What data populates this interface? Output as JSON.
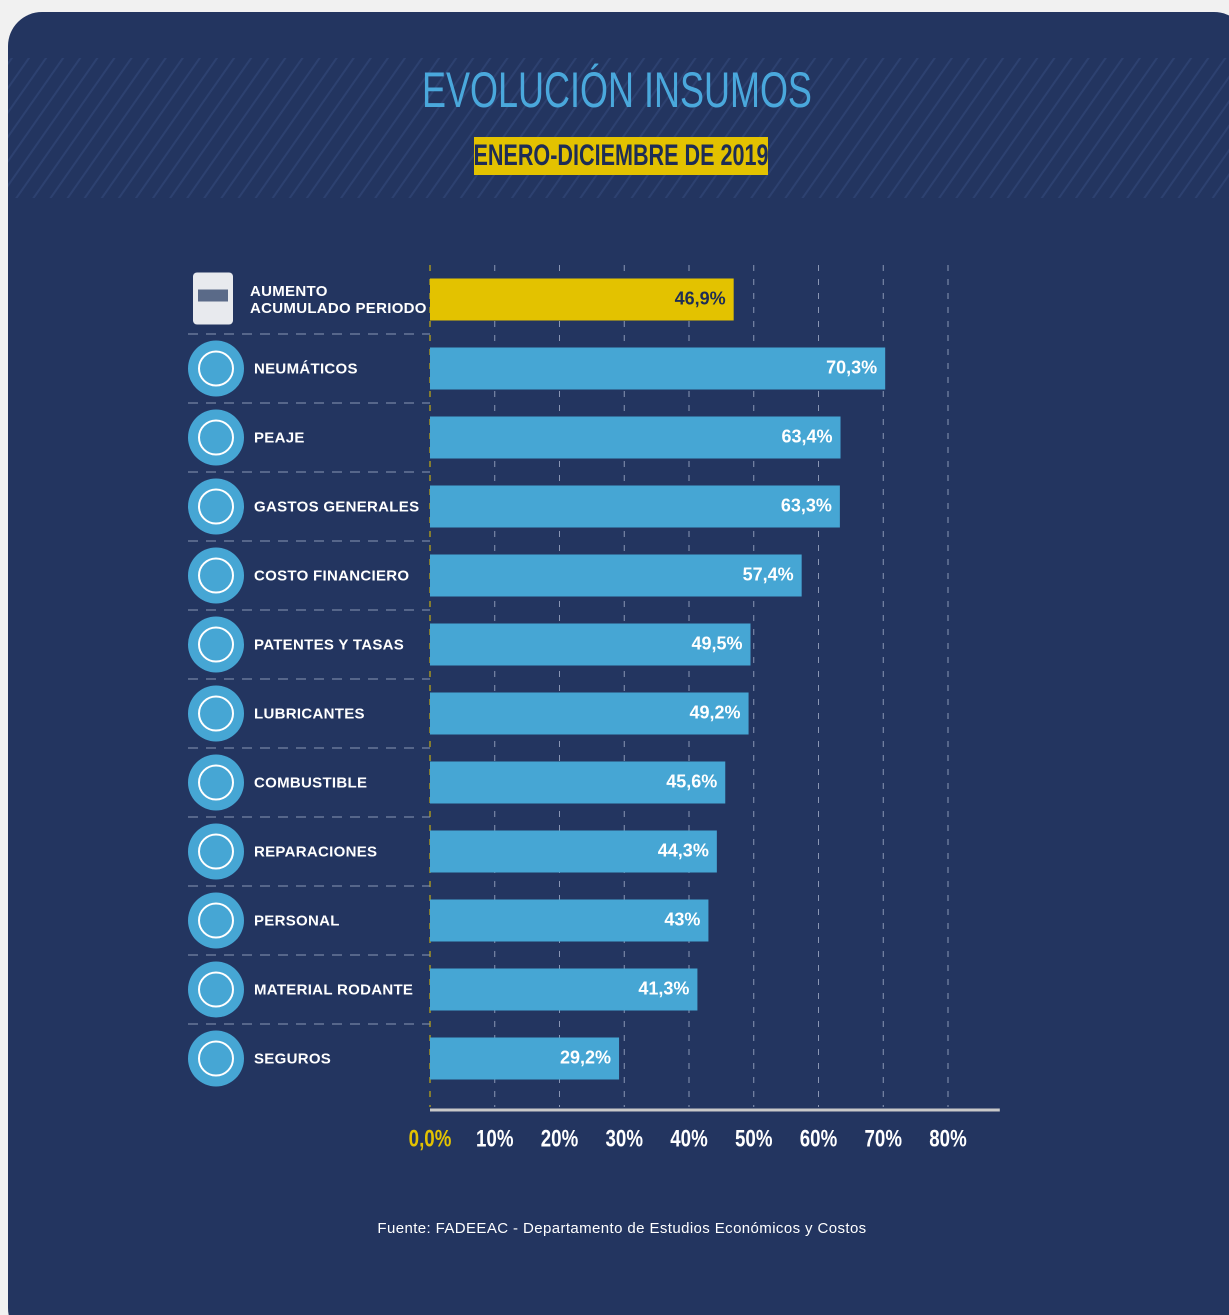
{
  "chart_data": {
    "type": "bar",
    "orientation": "horizontal",
    "title": "EVOLUCIÓN INSUMOS",
    "subtitle": "ENERO-DICIEMBRE DE 2019",
    "categories": [
      "AUMENTO\nACUMULADO PERIODO",
      "NEUMÁTICOS",
      "PEAJE",
      "GASTOS GENERALES",
      "COSTO FINANCIERO",
      "PATENTES Y TASAS",
      "LUBRICANTES",
      "COMBUSTIBLE",
      "REPARACIONES",
      "PERSONAL",
      "MATERIAL RODANTE",
      "SEGUROS"
    ],
    "values": [
      46.9,
      70.3,
      63.4,
      63.3,
      57.4,
      49.5,
      49.2,
      45.6,
      44.3,
      43,
      41.3,
      29.2
    ],
    "value_labels": [
      "46,9%",
      "70,3%",
      "63,4%",
      "63,3%",
      "57,4%",
      "49,5%",
      "49,2%",
      "45,6%",
      "44,3%",
      "43%",
      "41,3%",
      "29,2%"
    ],
    "colors": [
      "#e3c200",
      "#46a6d4",
      "#46a6d4",
      "#46a6d4",
      "#46a6d4",
      "#46a6d4",
      "#46a6d4",
      "#46a6d4",
      "#46a6d4",
      "#46a6d4",
      "#46a6d4",
      "#46a6d4"
    ],
    "xlim": [
      0,
      88
    ],
    "xticks": [
      {
        "value": 0,
        "label": "0,0%"
      },
      {
        "value": 10,
        "label": "10%"
      },
      {
        "value": 20,
        "label": "20%"
      },
      {
        "value": 30,
        "label": "30%"
      },
      {
        "value": 40,
        "label": "40%"
      },
      {
        "value": 50,
        "label": "50%"
      },
      {
        "value": 60,
        "label": "60%"
      },
      {
        "value": 70,
        "label": "70%"
      },
      {
        "value": 80,
        "label": "80%"
      }
    ],
    "grid": true,
    "source": "Fuente: FADEEAC - Departamento de Estudios Económicos y Costos"
  }
}
